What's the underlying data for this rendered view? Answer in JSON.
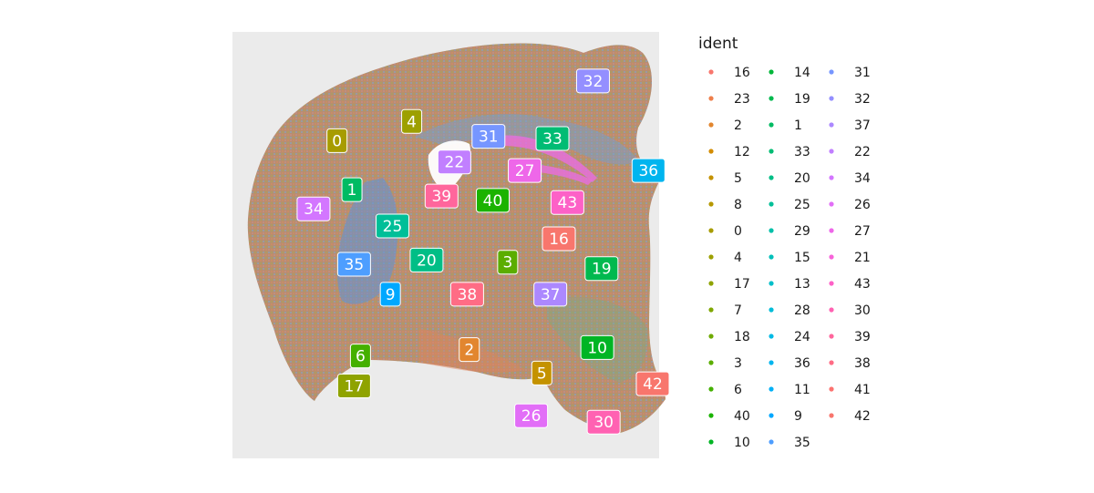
{
  "chart_data": {
    "type": "scatter",
    "title": "",
    "xlabel": "",
    "ylabel": "",
    "grid": false,
    "legend_title": "ident",
    "legend_position": "right",
    "legend_entries": [
      {
        "label": "16",
        "color": "#F8766D"
      },
      {
        "label": "23",
        "color": "#EE7F4B"
      },
      {
        "label": "2",
        "color": "#E2862F"
      },
      {
        "label": "12",
        "color": "#D38C00"
      },
      {
        "label": "5",
        "color": "#C49200"
      },
      {
        "label": "8",
        "color": "#B69800"
      },
      {
        "label": "0",
        "color": "#A79C00"
      },
      {
        "label": "4",
        "color": "#9DA000"
      },
      {
        "label": "17",
        "color": "#8FA300"
      },
      {
        "label": "7",
        "color": "#7FA700"
      },
      {
        "label": "18",
        "color": "#6FAA00"
      },
      {
        "label": "3",
        "color": "#5BAD00"
      },
      {
        "label": "6",
        "color": "#44B000"
      },
      {
        "label": "40",
        "color": "#1BB300"
      },
      {
        "label": "10",
        "color": "#00B524"
      },
      {
        "label": "14",
        "color": "#00B73A"
      },
      {
        "label": "19",
        "color": "#00B94F"
      },
      {
        "label": "1",
        "color": "#00BB63"
      },
      {
        "label": "33",
        "color": "#00BC74"
      },
      {
        "label": "20",
        "color": "#00BE86"
      },
      {
        "label": "25",
        "color": "#00BF98"
      },
      {
        "label": "29",
        "color": "#00C0A9"
      },
      {
        "label": "15",
        "color": "#00C0BA"
      },
      {
        "label": "13",
        "color": "#00BFCA"
      },
      {
        "label": "28",
        "color": "#00BDD9"
      },
      {
        "label": "24",
        "color": "#00BAE5"
      },
      {
        "label": "36",
        "color": "#00B5EF"
      },
      {
        "label": "11",
        "color": "#00B0F6"
      },
      {
        "label": "9",
        "color": "#00A8FF"
      },
      {
        "label": "35",
        "color": "#4E9EFF"
      },
      {
        "label": "31",
        "color": "#7696FF"
      },
      {
        "label": "32",
        "color": "#948FFF"
      },
      {
        "label": "37",
        "color": "#AC88FF"
      },
      {
        "label": "22",
        "color": "#C17FFF"
      },
      {
        "label": "34",
        "color": "#D376FF"
      },
      {
        "label": "26",
        "color": "#E26EF7"
      },
      {
        "label": "27",
        "color": "#EE67E9"
      },
      {
        "label": "21",
        "color": "#F763D9"
      },
      {
        "label": "43",
        "color": "#FD61C7"
      },
      {
        "label": "30",
        "color": "#FF62B2"
      },
      {
        "label": "39",
        "color": "#FF669C"
      },
      {
        "label": "38",
        "color": "#FF6C85"
      },
      {
        "label": "41",
        "color": "#FC726F"
      },
      {
        "label": "42",
        "color": "#F8766D"
      }
    ],
    "cluster_labels": [
      {
        "label": "32",
        "x": 0.845,
        "y": 0.885
      },
      {
        "label": "0",
        "x": 0.245,
        "y": 0.745
      },
      {
        "label": "4",
        "x": 0.42,
        "y": 0.79
      },
      {
        "label": "31",
        "x": 0.6,
        "y": 0.755
      },
      {
        "label": "33",
        "x": 0.75,
        "y": 0.75
      },
      {
        "label": "22",
        "x": 0.52,
        "y": 0.695
      },
      {
        "label": "27",
        "x": 0.685,
        "y": 0.675
      },
      {
        "label": "36",
        "x": 0.975,
        "y": 0.675
      },
      {
        "label": "1",
        "x": 0.28,
        "y": 0.63
      },
      {
        "label": "39",
        "x": 0.49,
        "y": 0.615
      },
      {
        "label": "40",
        "x": 0.61,
        "y": 0.605
      },
      {
        "label": "43",
        "x": 0.785,
        "y": 0.6
      },
      {
        "label": "34",
        "x": 0.19,
        "y": 0.585
      },
      {
        "label": "25",
        "x": 0.375,
        "y": 0.545
      },
      {
        "label": "16",
        "x": 0.765,
        "y": 0.515
      },
      {
        "label": "35",
        "x": 0.285,
        "y": 0.455
      },
      {
        "label": "20",
        "x": 0.455,
        "y": 0.465
      },
      {
        "label": "3",
        "x": 0.645,
        "y": 0.46
      },
      {
        "label": "19",
        "x": 0.865,
        "y": 0.445
      },
      {
        "label": "9",
        "x": 0.37,
        "y": 0.385
      },
      {
        "label": "38",
        "x": 0.55,
        "y": 0.385
      },
      {
        "label": "37",
        "x": 0.745,
        "y": 0.385
      },
      {
        "label": "6",
        "x": 0.3,
        "y": 0.24
      },
      {
        "label": "2",
        "x": 0.555,
        "y": 0.255
      },
      {
        "label": "10",
        "x": 0.855,
        "y": 0.26
      },
      {
        "label": "5",
        "x": 0.725,
        "y": 0.2
      },
      {
        "label": "17",
        "x": 0.285,
        "y": 0.17
      },
      {
        "label": "42",
        "x": 0.985,
        "y": 0.175
      },
      {
        "label": "26",
        "x": 0.7,
        "y": 0.1
      },
      {
        "label": "30",
        "x": 0.87,
        "y": 0.085
      }
    ]
  }
}
